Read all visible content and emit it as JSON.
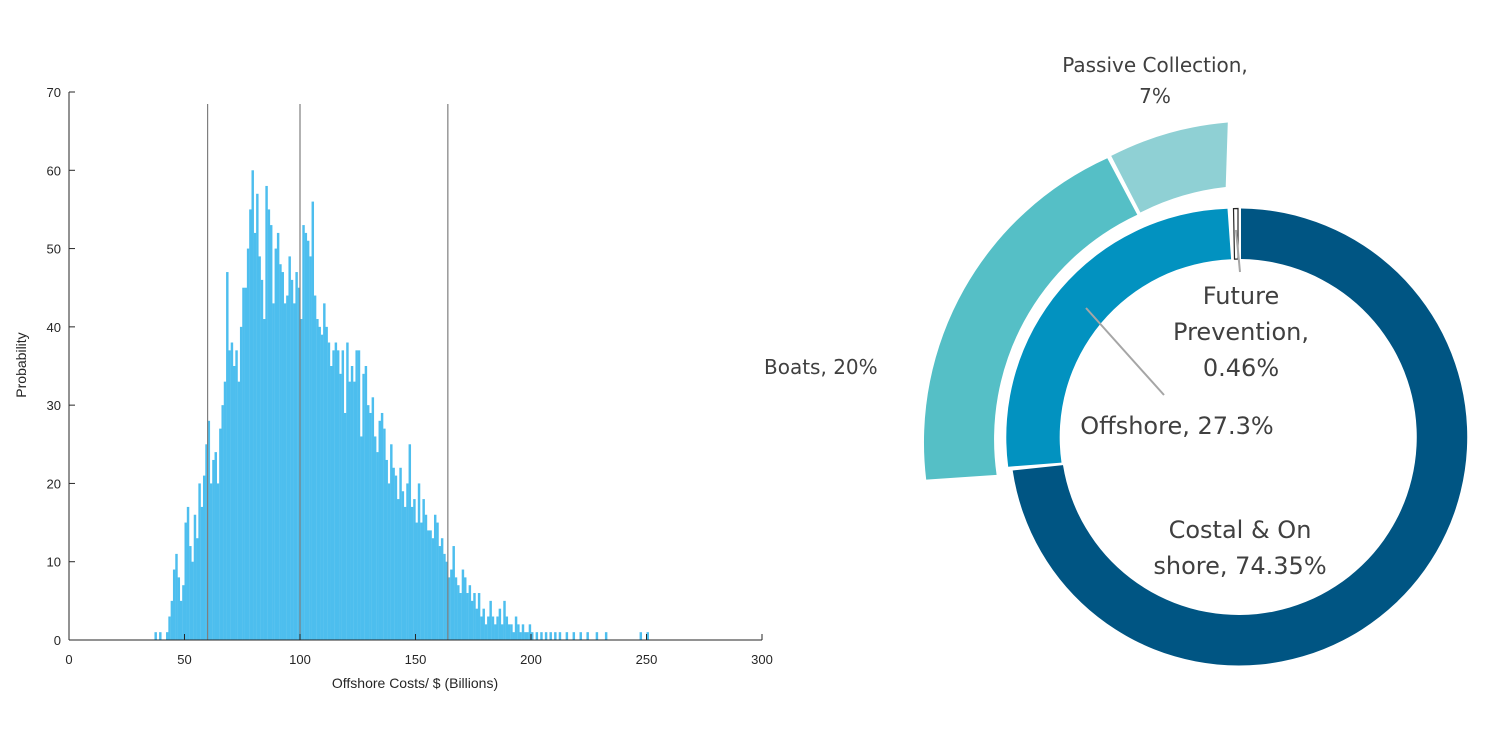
{
  "chart_data": [
    {
      "type": "bar",
      "xlabel": "Offshore Costs/ $ (Billions)",
      "ylabel": "Probability",
      "xlim": [
        0,
        300
      ],
      "ylim": [
        0,
        70
      ],
      "xticks": [
        "0",
        "50",
        "100",
        "150",
        "200",
        "250",
        "300"
      ],
      "yticks": [
        "0",
        "10",
        "20",
        "30",
        "40",
        "50",
        "60",
        "70"
      ],
      "bar_color": "#4dbeee",
      "bin_width": 1,
      "reference_lines": [
        60,
        100,
        164
      ],
      "reference_line_color": "#7f7f7f",
      "series": [
        {
          "x": [
            37,
            39,
            42,
            43,
            44,
            45,
            46,
            47,
            48,
            49,
            50,
            51,
            52,
            53,
            54,
            55,
            56,
            57,
            58,
            59,
            60,
            61,
            62,
            63,
            64,
            65,
            66,
            67,
            68,
            69,
            70,
            71,
            72,
            73,
            74,
            75,
            76,
            77,
            78,
            79,
            80,
            81,
            82,
            83,
            84,
            85,
            86,
            87,
            88,
            89,
            90,
            91,
            92,
            93,
            94,
            95,
            96,
            97,
            98,
            99,
            100,
            101,
            102,
            103,
            104,
            105,
            106,
            107,
            108,
            109,
            110,
            111,
            112,
            113,
            114,
            115,
            116,
            117,
            118,
            119,
            120,
            121,
            122,
            123,
            124,
            125,
            126,
            127,
            128,
            129,
            130,
            131,
            132,
            133,
            134,
            135,
            136,
            137,
            138,
            139,
            140,
            141,
            142,
            143,
            144,
            145,
            146,
            147,
            148,
            149,
            150,
            151,
            152,
            153,
            154,
            155,
            156,
            157,
            158,
            159,
            160,
            161,
            162,
            163,
            164,
            165,
            166,
            167,
            168,
            169,
            170,
            171,
            172,
            173,
            174,
            175,
            176,
            177,
            178,
            179,
            180,
            181,
            182,
            183,
            184,
            185,
            186,
            187,
            188,
            189,
            190,
            191,
            192,
            193,
            194,
            195,
            196,
            197,
            198,
            199,
            200,
            202,
            204,
            206,
            208,
            210,
            212,
            215,
            218,
            221,
            224,
            228,
            232,
            247,
            250
          ],
          "values": [
            1,
            1,
            1,
            3,
            5,
            9,
            11,
            8,
            5,
            7,
            15,
            17,
            12,
            10,
            16,
            13,
            20,
            17,
            21,
            25,
            28,
            20,
            23,
            24,
            20,
            27,
            30,
            33,
            47,
            37,
            38,
            35,
            37,
            33,
            40,
            45,
            45,
            50,
            55,
            60,
            52,
            57,
            49,
            46,
            41,
            58,
            55,
            53,
            43,
            50,
            52,
            48,
            47,
            43,
            44,
            49,
            46,
            43,
            47,
            45,
            41,
            53,
            52,
            51,
            49,
            56,
            44,
            41,
            40,
            39,
            43,
            40,
            38,
            35,
            37,
            38,
            37,
            34,
            37,
            29,
            38,
            33,
            35,
            33,
            37,
            37,
            26,
            34,
            35,
            30,
            29,
            31,
            26,
            24,
            28,
            29,
            27,
            23,
            20,
            25,
            22,
            21,
            18,
            22,
            19,
            17,
            20,
            25,
            17,
            18,
            15,
            20,
            15,
            18,
            16,
            14,
            14,
            13,
            16,
            15,
            12,
            13,
            11,
            10,
            8,
            9,
            12,
            8,
            7,
            6,
            9,
            8,
            6,
            7,
            5,
            6,
            4,
            6,
            3,
            4,
            2,
            3,
            5,
            3,
            2,
            3,
            4,
            2,
            5,
            3,
            2,
            2,
            1,
            3,
            2,
            1,
            2,
            1,
            1,
            2,
            1,
            1,
            1,
            1,
            1,
            1,
            1,
            1,
            1,
            1,
            1,
            1,
            1,
            1,
            1
          ]
        }
      ]
    },
    {
      "type": "pie",
      "rings": [
        {
          "ring": "outer",
          "slices": [
            {
              "label": "Passive Collection,",
              "label2": "7%",
              "value": 7,
              "color": "#8fd0d4"
            },
            {
              "label": "Boats, 20%",
              "label2": "",
              "value": 20,
              "color": "#55bfc6"
            }
          ]
        },
        {
          "ring": "inner",
          "slices": [
            {
              "label": "Future",
              "label2": "Prevention,",
              "label3": "0.46%",
              "value": 0.46,
              "color": "#ffffff"
            },
            {
              "label": "Costal & On",
              "label2": "shore, 74.35%",
              "value": 74.35,
              "color": "#005583"
            },
            {
              "label": "Offshore, 27.3%",
              "label2": "",
              "value": 27.3,
              "color": "#0292c0"
            }
          ]
        }
      ]
    }
  ]
}
